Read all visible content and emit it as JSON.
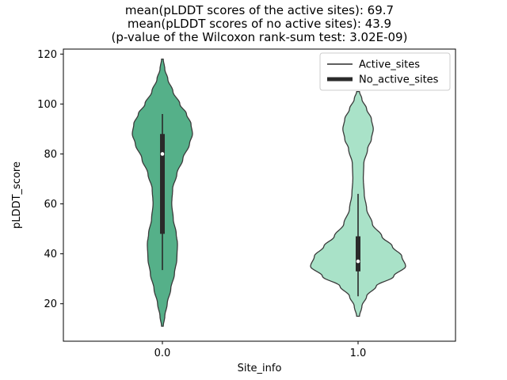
{
  "chart_data": {
    "type": "violin",
    "title_lines": [
      "mean(pLDDT scores of the active sites): 69.7",
      "mean(pLDDT scores of no active sites): 43.9",
      "(p-value of the Wilcoxon rank-sum test: 3.02E-09)"
    ],
    "xlabel": "Site_info",
    "ylabel": "pLDDT_score",
    "ylim": [
      5,
      122
    ],
    "yticks": [
      20,
      40,
      60,
      80,
      100,
      120
    ],
    "xticks": [
      "0.0",
      "1.0"
    ],
    "stats": {
      "mean_active_sites": 69.7,
      "mean_no_active_sites": 43.9,
      "wilcoxon_p_value": "3.02E-09"
    },
    "legend": [
      {
        "label": "Active_sites",
        "weight": "thin"
      },
      {
        "label": "No_active_sites",
        "weight": "thick"
      }
    ],
    "colors": {
      "edge": "#3a3a3a",
      "box": "#2a2a2a",
      "active_fill": "#55b089",
      "no_active_fill": "#a9e2c8",
      "legend_border": "#cccccc"
    },
    "series": [
      {
        "name": "Active_sites",
        "key": "active-sites",
        "x": "0.0",
        "color": "#55b089",
        "range": [
          11,
          118
        ],
        "box": {
          "whisker_low": 33.5,
          "q1": 48,
          "median": 80,
          "q3": 88,
          "whisker_high": 96
        },
        "profile": [
          [
            11,
            0.03
          ],
          [
            15,
            0.08
          ],
          [
            20,
            0.16
          ],
          [
            26,
            0.28
          ],
          [
            32,
            0.4
          ],
          [
            38,
            0.48
          ],
          [
            44,
            0.5
          ],
          [
            48,
            0.46
          ],
          [
            54,
            0.36
          ],
          [
            60,
            0.31
          ],
          [
            66,
            0.34
          ],
          [
            72,
            0.48
          ],
          [
            78,
            0.68
          ],
          [
            84,
            0.9
          ],
          [
            88,
            1.0
          ],
          [
            92,
            0.95
          ],
          [
            96,
            0.8
          ],
          [
            100,
            0.58
          ],
          [
            105,
            0.35
          ],
          [
            110,
            0.18
          ],
          [
            114,
            0.08
          ],
          [
            118,
            0.03
          ]
        ]
      },
      {
        "name": "No_active_sites",
        "key": "no-active-sites",
        "x": "1.0",
        "color": "#a9e2c8",
        "range": [
          15,
          105
        ],
        "box": {
          "whisker_low": 23,
          "q1": 33,
          "median": 37,
          "q3": 47,
          "whisker_high": 64
        },
        "profile": [
          [
            15,
            0.03
          ],
          [
            19,
            0.08
          ],
          [
            23,
            0.18
          ],
          [
            27,
            0.38
          ],
          [
            31,
            0.75
          ],
          [
            35,
            1.0
          ],
          [
            39,
            0.92
          ],
          [
            43,
            0.72
          ],
          [
            47,
            0.5
          ],
          [
            52,
            0.3
          ],
          [
            58,
            0.18
          ],
          [
            64,
            0.13
          ],
          [
            70,
            0.11
          ],
          [
            76,
            0.12
          ],
          [
            82,
            0.2
          ],
          [
            86,
            0.28
          ],
          [
            90,
            0.32
          ],
          [
            94,
            0.28
          ],
          [
            98,
            0.18
          ],
          [
            102,
            0.08
          ],
          [
            105,
            0.03
          ]
        ]
      }
    ]
  }
}
